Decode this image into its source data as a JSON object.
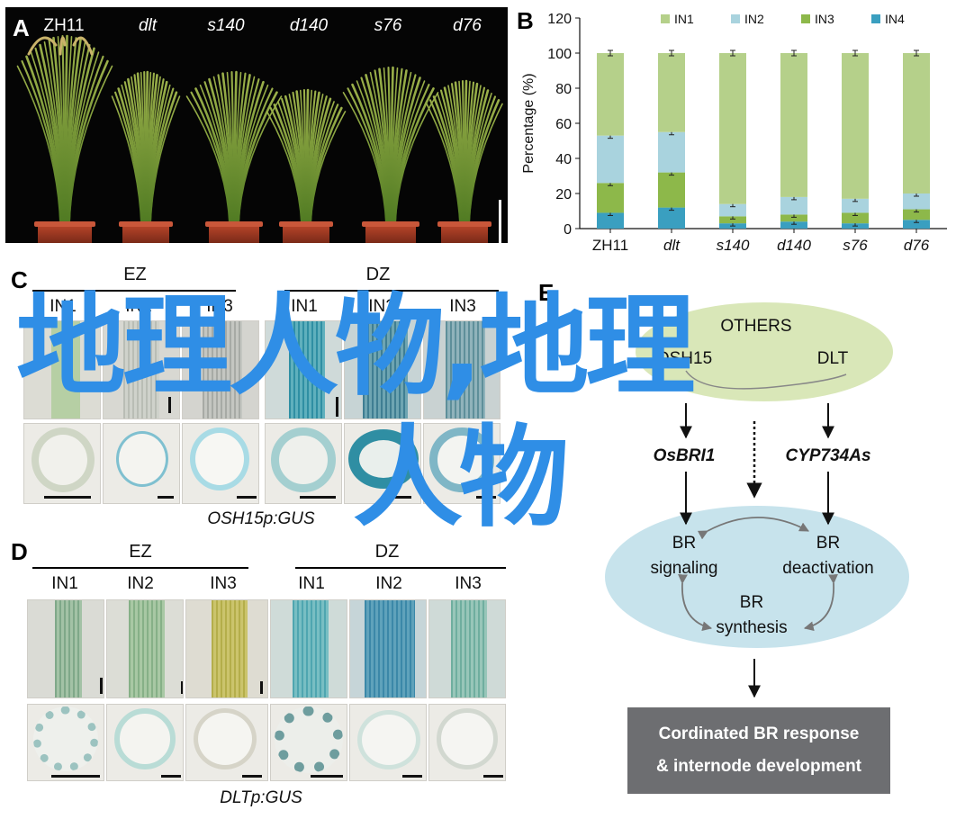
{
  "panels": {
    "a": "A",
    "b": "B",
    "c": "C",
    "d": "D",
    "e": "E"
  },
  "panelA": {
    "genotypes": [
      "ZH11",
      "dlt",
      "s140",
      "d140",
      "s76",
      "d76"
    ]
  },
  "chart_data": {
    "type": "bar",
    "stacked": true,
    "categories": [
      "ZH11",
      "dlt",
      "s140",
      "d140",
      "s76",
      "d76"
    ],
    "ylabel": "Percentage (%)",
    "xlabel": "",
    "title": "",
    "ylim": [
      0,
      120
    ],
    "yticks": [
      0,
      20,
      40,
      60,
      80,
      100,
      120
    ],
    "legend_position": "top",
    "error_bars": true,
    "series": [
      {
        "name": "IN4",
        "color": "#3a9fc0",
        "values": [
          9,
          12,
          3,
          4,
          3,
          5
        ]
      },
      {
        "name": "IN3",
        "color": "#8db84a",
        "values": [
          17,
          20,
          4,
          4,
          6,
          6
        ]
      },
      {
        "name": "IN2",
        "color": "#a9d3de",
        "values": [
          27,
          23,
          7,
          10,
          8,
          9
        ]
      },
      {
        "name": "IN1",
        "color": "#b5d08a",
        "values": [
          47,
          45,
          86,
          82,
          83,
          80
        ]
      }
    ],
    "legend_order": [
      "IN1",
      "IN2",
      "IN3",
      "IN4"
    ]
  },
  "panelC": {
    "groups": [
      "EZ",
      "DZ"
    ],
    "columns": [
      "IN1",
      "IN2",
      "IN3",
      "IN1",
      "IN2",
      "IN3"
    ],
    "caption": "OSH15p:GUS"
  },
  "panelD": {
    "groups": [
      "EZ",
      "DZ"
    ],
    "columns": [
      "IN1",
      "IN2",
      "IN3",
      "IN1",
      "IN2",
      "IN3"
    ],
    "caption": "DLTp:GUS"
  },
  "panelE": {
    "top_oval": {
      "line1": "OTHERS",
      "left": "OSH15",
      "right": "DLT"
    },
    "genes": {
      "left": "OsBRI1",
      "right": "CYP734As"
    },
    "bottom_oval": {
      "signaling_1": "BR",
      "signaling_2": "signaling",
      "deactivation_1": "BR",
      "deactivation_2": "deactivation",
      "synthesis_1": "BR",
      "synthesis_2": "synthesis"
    },
    "response_1": "Cordinated BR response",
    "response_2": "& internode development"
  },
  "watermark": {
    "line1": "地理人物,地理",
    "line2": "人物",
    "color": "#2f8ee6"
  }
}
